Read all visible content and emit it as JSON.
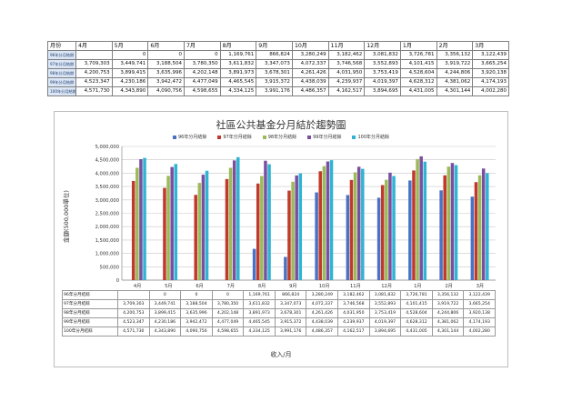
{
  "top_table": {
    "header_label": "月份",
    "months": [
      "4月",
      "5月",
      "6月",
      "7月",
      "8月",
      "9月",
      "10月",
      "11月",
      "12月",
      "1月",
      "2月",
      "3月"
    ],
    "rows": [
      {
        "label": "96年分月結餘",
        "values": [
          "",
          "0",
          "0",
          "0",
          "1,169,761",
          "866,824",
          "3,280,249",
          "3,182,462",
          "3,081,832",
          "3,726,781",
          "3,356,132",
          "3,122,439"
        ]
      },
      {
        "label": "97年分月結餘",
        "values": [
          "3,709,303",
          "3,449,741",
          "3,188,504",
          "3,780,350",
          "3,611,832",
          "3,347,073",
          "4,072,337",
          "3,746,568",
          "3,552,893",
          "4,101,415",
          "3,919,722",
          "3,665,254"
        ]
      },
      {
        "label": "98年分月結餘",
        "values": [
          "4,200,753",
          "3,899,415",
          "3,635,996",
          "4,202,148",
          "3,891,973",
          "3,678,301",
          "4,261,426",
          "4,031,950",
          "3,753,419",
          "4,528,604",
          "4,244,806",
          "3,920,138"
        ]
      },
      {
        "label": "99年分月結餘",
        "values": [
          "4,523,347",
          "4,230,186",
          "3,942,472",
          "4,477,049",
          "4,465,545",
          "3,915,372",
          "4,438,039",
          "4,239,937",
          "4,019,397",
          "4,628,312",
          "4,381,062",
          "4,174,193"
        ]
      },
      {
        "label": "100年分月結餘",
        "values": [
          "4,571,730",
          "4,343,890",
          "4,090,756",
          "4,598,655",
          "4,334,125",
          "3,991,176",
          "4,486,357",
          "4,162,517",
          "3,894,695",
          "4,431,005",
          "4,301,144",
          "4,002,280"
        ]
      }
    ]
  },
  "chart_data": {
    "type": "bar",
    "title": "社區公共基金分月結於趨勢圖",
    "ylabel": "金額(500,000單位)",
    "xlabel": "收入/月",
    "categories": [
      "4月",
      "5月",
      "6月",
      "7月",
      "8月",
      "9月",
      "10月",
      "11月",
      "12月",
      "1月",
      "2月",
      "3月"
    ],
    "ylim": [
      0,
      5000000
    ],
    "yticks": [
      "0",
      "500,000",
      "1,000,000",
      "1,500,000",
      "2,000,000",
      "2,500,000",
      "3,000,000",
      "3,500,000",
      "4,000,000",
      "4,500,000",
      "5,000,000"
    ],
    "legend_position": "top",
    "grid": true,
    "series": [
      {
        "name": "96年分月結餘",
        "color": "#4a72c4",
        "values": [
          0,
          0,
          0,
          0,
          1169761,
          866824,
          3280249,
          3182462,
          3081832,
          3726781,
          3356132,
          3122439
        ]
      },
      {
        "name": "97年分月結餘",
        "color": "#c0392b",
        "values": [
          3709303,
          3449741,
          3188504,
          3780350,
          3611832,
          3347073,
          4072337,
          3746568,
          3552893,
          4101415,
          3919722,
          3665254
        ]
      },
      {
        "name": "98年分月結餘",
        "color": "#9bbb59",
        "values": [
          4200753,
          3899415,
          3635996,
          4202148,
          3891973,
          3678301,
          4261426,
          4031950,
          3753419,
          4528604,
          4244806,
          3920138
        ]
      },
      {
        "name": "99年分月結餘",
        "color": "#7a4fa0",
        "values": [
          4523347,
          4230186,
          3942472,
          4477049,
          4465545,
          3915372,
          4438039,
          4239937,
          4019397,
          4628312,
          4381062,
          4174193
        ]
      },
      {
        "name": "100年分月結餘",
        "color": "#2fb4d3",
        "values": [
          4571730,
          4343890,
          4090756,
          4598655,
          4334125,
          3991176,
          4486357,
          4162517,
          3894695,
          4431005,
          4301144,
          4002280
        ]
      }
    ],
    "table_rows": [
      {
        "label": "96年分月結餘",
        "values": [
          "",
          "0",
          "0",
          "0",
          "1,169,761",
          "866,824",
          "3,280,249",
          "3,182,462",
          "3,081,832",
          "3,726,781",
          "3,356,132",
          "3,122,439"
        ]
      },
      {
        "label": "97年分月結餘",
        "values": [
          "3,709,303",
          "3,449,741",
          "3,188,504",
          "3,780,350",
          "3,611,832",
          "3,347,073",
          "4,072,337",
          "3,746,568",
          "3,552,893",
          "4,101,415",
          "3,919,722",
          "3,665,254"
        ]
      },
      {
        "label": "98年分月結餘",
        "values": [
          "4,200,753",
          "3,899,415",
          "3,635,996",
          "4,202,148",
          "3,891,973",
          "3,678,301",
          "4,261,426",
          "4,031,950",
          "3,753,419",
          "4,528,604",
          "4,244,806",
          "3,920,138"
        ]
      },
      {
        "label": "99年分月結餘",
        "values": [
          "4,523,347",
          "4,230,186",
          "3,942,472",
          "4,477,049",
          "4,465,545",
          "3,915,372",
          "4,438,039",
          "4,239,937",
          "4,019,397",
          "4,628,312",
          "4,381,062",
          "4,174,193"
        ]
      },
      {
        "label": "100年分月結餘",
        "values": [
          "4,571,730",
          "4,343,890",
          "4,090,756",
          "4,598,655",
          "4,334,125",
          "3,991,176",
          "4,486,357",
          "4,162,517",
          "3,894,695",
          "4,431,005",
          "4,301,144",
          "4,002,280"
        ]
      }
    ]
  }
}
